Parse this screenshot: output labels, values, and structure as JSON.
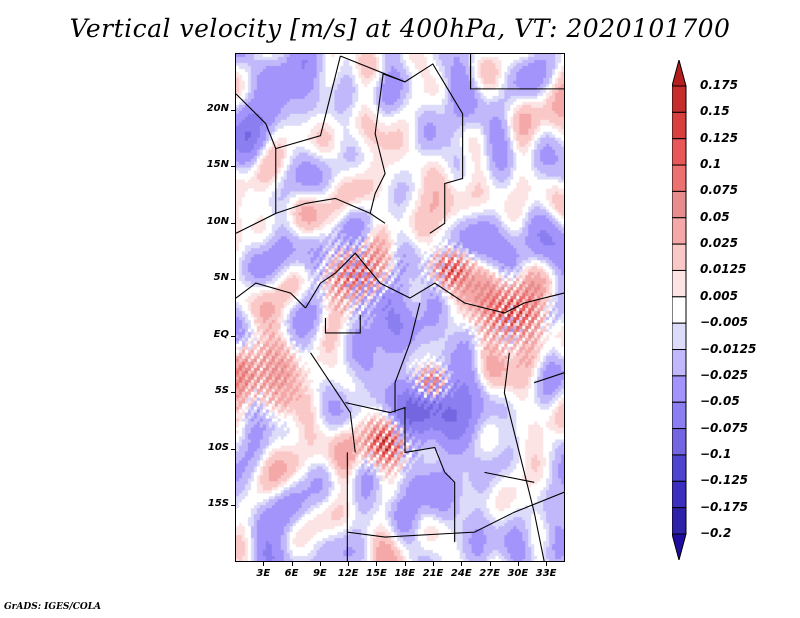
{
  "chart_data": {
    "type": "heatmap",
    "title": "Vertical velocity [m/s] at 400hPa, VT: 2020101700",
    "variable": "Vertical velocity",
    "units": "m/s",
    "level": "400hPa",
    "valid_time": "2020101700",
    "xlabel": "",
    "ylabel": "",
    "x_ticks": [
      "3E",
      "6E",
      "9E",
      "12E",
      "15E",
      "18E",
      "21E",
      "24E",
      "27E",
      "30E",
      "33E"
    ],
    "x_tick_values": [
      3,
      6,
      9,
      12,
      15,
      18,
      21,
      24,
      27,
      30,
      33
    ],
    "y_ticks": [
      "20N",
      "15N",
      "10N",
      "5N",
      "EQ",
      "5S",
      "10S",
      "15S"
    ],
    "y_tick_values": [
      20,
      15,
      10,
      5,
      0,
      -5,
      -10,
      -15
    ],
    "xlim": [
      0,
      35
    ],
    "ylim": [
      -20,
      25
    ],
    "colorbar": {
      "orientation": "vertical",
      "placement": "right",
      "levels": [
        "0.175",
        "0.15",
        "0.125",
        "0.1",
        "0.075",
        "0.05",
        "0.025",
        "0.0125",
        "0.005",
        "-0.005",
        "-0.0125",
        "-0.025",
        "-0.05",
        "-0.075",
        "-0.1",
        "-0.125",
        "-0.175",
        "-0.2"
      ],
      "colors": [
        "#b41e1e",
        "#c62d2d",
        "#d84040",
        "#e85858",
        "#ec7272",
        "#e88d8d",
        "#f4a8a8",
        "#fbc8c8",
        "#fde4e4",
        "#ffffff",
        "#dcdcfa",
        "#c0b8fa",
        "#a294fa",
        "#8a7ef0",
        "#7466e0",
        "#4e44d0",
        "#3c2ebe",
        "#2e22a8",
        "#200ca0"
      ]
    },
    "regions_of_note": [
      {
        "description": "Strong ascent (red) clusters over Cameroon/CAR ~5-7N, 13-18E"
      },
      {
        "description": "Strong ascent over East Africa ~0-3S, 28-30E"
      },
      {
        "description": "Strong ascent band over Angola ~6-10S, 14-16E"
      },
      {
        "description": "Descent (blue) over central Congo basin ~3-6S, 19-22E"
      }
    ]
  },
  "credit": "GrADS: IGES/COLA"
}
